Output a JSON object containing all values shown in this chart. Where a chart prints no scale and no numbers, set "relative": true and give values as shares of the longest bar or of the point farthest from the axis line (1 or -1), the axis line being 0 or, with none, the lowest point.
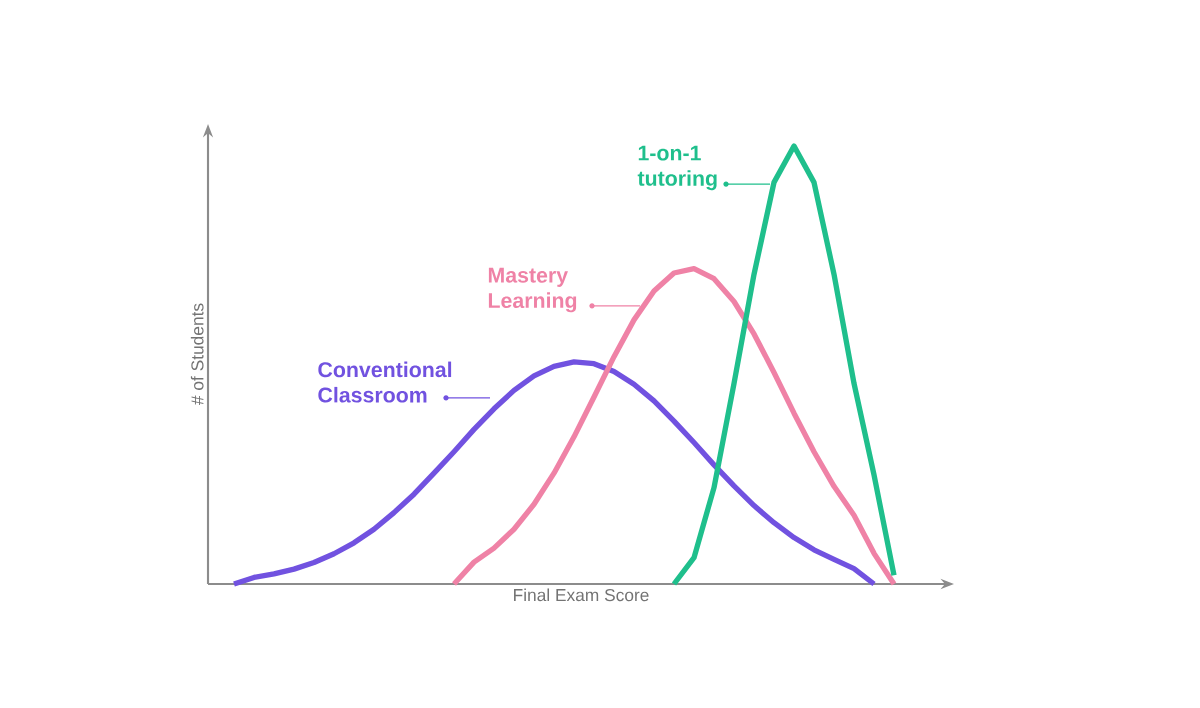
{
  "chart_data": {
    "type": "line",
    "xlabel": "Final Exam Score",
    "ylabel": "# of Students",
    "relative": true,
    "marker": "none",
    "line_style": "solid",
    "categories": [
      null,
      null,
      null,
      null,
      null,
      null,
      null,
      null,
      null,
      null,
      null,
      null,
      null,
      null,
      null,
      null,
      null,
      null,
      null,
      null,
      null,
      null,
      null,
      null,
      null,
      null,
      null,
      null,
      null,
      null,
      null,
      null,
      null,
      null
    ],
    "series": [
      {
        "name": "Conventional Classroom",
        "color": "#7152e0",
        "values": [
          0,
          0.015,
          0.023,
          0.034,
          0.049,
          0.069,
          0.094,
          0.125,
          0.163,
          0.205,
          0.253,
          0.302,
          0.353,
          0.4,
          0.442,
          0.475,
          0.497,
          0.507,
          0.503,
          0.485,
          0.456,
          0.418,
          0.372,
          0.323,
          0.272,
          0.224,
          0.179,
          0.14,
          0.106,
          0.078,
          0.056,
          0.035,
          0,
          null
        ]
      },
      {
        "name": "Mastery Learning",
        "color": "#ef82a6",
        "values": [
          null,
          null,
          null,
          null,
          null,
          null,
          null,
          null,
          null,
          null,
          null,
          0,
          0.05,
          0.082,
          0.125,
          0.182,
          0.253,
          0.336,
          0.427,
          0.519,
          0.603,
          0.669,
          0.71,
          0.72,
          0.697,
          0.645,
          0.571,
          0.483,
          0.39,
          0.302,
          0.223,
          0.157,
          0.07,
          0
        ]
      },
      {
        "name": "1-on-1 tutoring",
        "color": "#1fbf8c",
        "values": [
          null,
          null,
          null,
          null,
          null,
          null,
          null,
          null,
          null,
          null,
          null,
          null,
          null,
          null,
          null,
          null,
          null,
          null,
          null,
          null,
          null,
          null,
          0,
          0.06,
          0.22,
          0.458,
          0.707,
          0.917,
          1,
          0.917,
          0.707,
          0.458,
          0.249,
          0.02
        ]
      }
    ]
  }
}
